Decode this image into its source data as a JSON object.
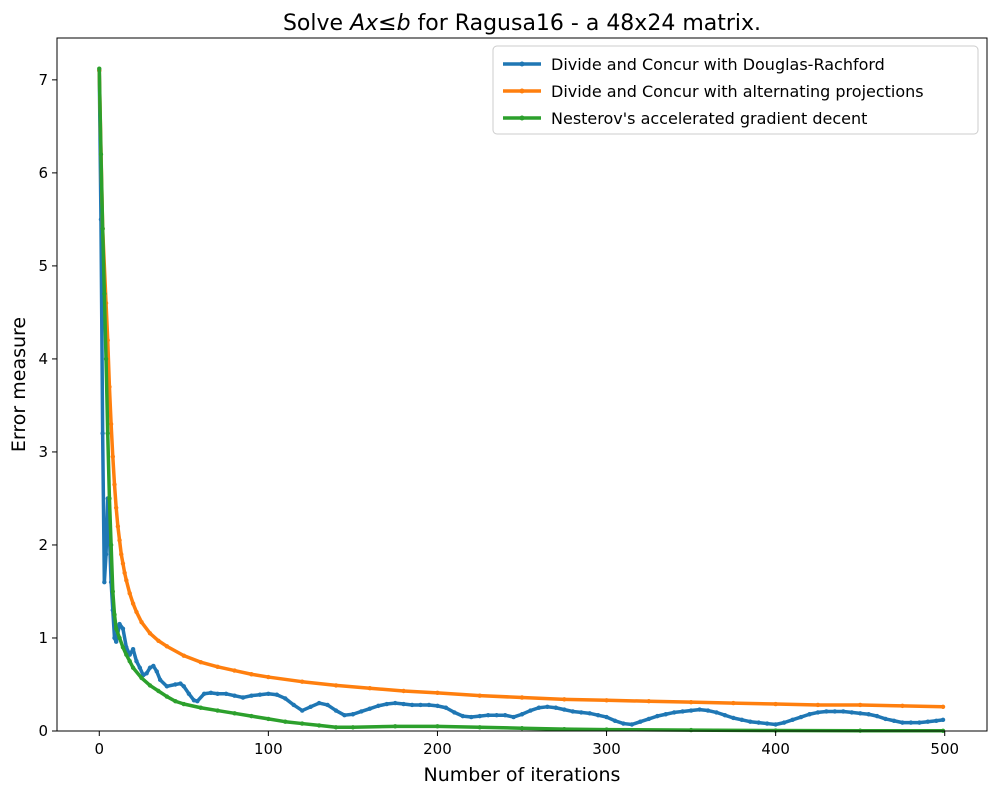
{
  "chart_data": {
    "type": "line",
    "title_parts": {
      "prefix": "Solve ",
      "math_a": "Ax",
      "relation": "≤",
      "math_b": "b",
      "suffix": " for Ragusa16 - a 48x24 matrix."
    },
    "xlabel": "Number of iterations",
    "ylabel": "Error measure",
    "xlim": [
      -25,
      525
    ],
    "ylim": [
      0,
      7.45
    ],
    "xticks": [
      0,
      100,
      200,
      300,
      400,
      500
    ],
    "yticks": [
      0,
      1,
      2,
      3,
      4,
      5,
      6,
      7
    ],
    "grid": false,
    "legend_position": "top-right",
    "series": [
      {
        "name": "Divide and Concur with Douglas-Rachford",
        "color": "#1f77b4",
        "points": [
          [
            0,
            7.1
          ],
          [
            1,
            5.5
          ],
          [
            2,
            3.2
          ],
          [
            3,
            1.6
          ],
          [
            4,
            1.9
          ],
          [
            5,
            2.5
          ],
          [
            6,
            2.1
          ],
          [
            7,
            1.6
          ],
          [
            8,
            1.3
          ],
          [
            9,
            1.0
          ],
          [
            10,
            0.96
          ],
          [
            12,
            1.15
          ],
          [
            14,
            1.1
          ],
          [
            16,
            0.9
          ],
          [
            18,
            0.82
          ],
          [
            20,
            0.88
          ],
          [
            22,
            0.75
          ],
          [
            24,
            0.68
          ],
          [
            26,
            0.6
          ],
          [
            28,
            0.62
          ],
          [
            30,
            0.68
          ],
          [
            32,
            0.7
          ],
          [
            34,
            0.64
          ],
          [
            36,
            0.55
          ],
          [
            40,
            0.48
          ],
          [
            45,
            0.5
          ],
          [
            48,
            0.51
          ],
          [
            50,
            0.48
          ],
          [
            53,
            0.4
          ],
          [
            56,
            0.33
          ],
          [
            58,
            0.32
          ],
          [
            62,
            0.4
          ],
          [
            66,
            0.41
          ],
          [
            70,
            0.4
          ],
          [
            75,
            0.4
          ],
          [
            80,
            0.38
          ],
          [
            85,
            0.36
          ],
          [
            90,
            0.38
          ],
          [
            95,
            0.39
          ],
          [
            100,
            0.4
          ],
          [
            105,
            0.39
          ],
          [
            110,
            0.35
          ],
          [
            115,
            0.28
          ],
          [
            120,
            0.22
          ],
          [
            125,
            0.26
          ],
          [
            130,
            0.3
          ],
          [
            135,
            0.28
          ],
          [
            140,
            0.22
          ],
          [
            145,
            0.17
          ],
          [
            150,
            0.18
          ],
          [
            155,
            0.21
          ],
          [
            160,
            0.24
          ],
          [
            165,
            0.27
          ],
          [
            170,
            0.29
          ],
          [
            175,
            0.3
          ],
          [
            180,
            0.29
          ],
          [
            185,
            0.28
          ],
          [
            190,
            0.28
          ],
          [
            195,
            0.28
          ],
          [
            200,
            0.27
          ],
          [
            205,
            0.25
          ],
          [
            210,
            0.2
          ],
          [
            215,
            0.16
          ],
          [
            220,
            0.15
          ],
          [
            225,
            0.16
          ],
          [
            230,
            0.17
          ],
          [
            235,
            0.17
          ],
          [
            240,
            0.17
          ],
          [
            245,
            0.15
          ],
          [
            250,
            0.18
          ],
          [
            255,
            0.22
          ],
          [
            260,
            0.25
          ],
          [
            265,
            0.26
          ],
          [
            270,
            0.25
          ],
          [
            275,
            0.23
          ],
          [
            280,
            0.21
          ],
          [
            285,
            0.2
          ],
          [
            290,
            0.19
          ],
          [
            295,
            0.17
          ],
          [
            300,
            0.15
          ],
          [
            305,
            0.11
          ],
          [
            310,
            0.08
          ],
          [
            315,
            0.07
          ],
          [
            320,
            0.1
          ],
          [
            325,
            0.13
          ],
          [
            330,
            0.16
          ],
          [
            335,
            0.18
          ],
          [
            340,
            0.2
          ],
          [
            345,
            0.21
          ],
          [
            350,
            0.22
          ],
          [
            355,
            0.23
          ],
          [
            360,
            0.22
          ],
          [
            365,
            0.2
          ],
          [
            370,
            0.17
          ],
          [
            375,
            0.14
          ],
          [
            380,
            0.12
          ],
          [
            385,
            0.1
          ],
          [
            390,
            0.09
          ],
          [
            395,
            0.08
          ],
          [
            400,
            0.07
          ],
          [
            405,
            0.09
          ],
          [
            410,
            0.12
          ],
          [
            415,
            0.15
          ],
          [
            420,
            0.18
          ],
          [
            425,
            0.2
          ],
          [
            430,
            0.21
          ],
          [
            435,
            0.21
          ],
          [
            440,
            0.21
          ],
          [
            445,
            0.2
          ],
          [
            450,
            0.19
          ],
          [
            455,
            0.18
          ],
          [
            460,
            0.16
          ],
          [
            465,
            0.13
          ],
          [
            470,
            0.11
          ],
          [
            475,
            0.09
          ],
          [
            480,
            0.09
          ],
          [
            485,
            0.09
          ],
          [
            490,
            0.1
          ],
          [
            495,
            0.11
          ],
          [
            499,
            0.12
          ]
        ]
      },
      {
        "name": "Divide and Concur with alternating projections",
        "color": "#ff7f0e",
        "points": [
          [
            0,
            7.1
          ],
          [
            2,
            5.4
          ],
          [
            4,
            4.6
          ],
          [
            5,
            4.2
          ],
          [
            6,
            3.7
          ],
          [
            7,
            3.3
          ],
          [
            8,
            2.95
          ],
          [
            9,
            2.65
          ],
          [
            10,
            2.4
          ],
          [
            11,
            2.2
          ],
          [
            12,
            2.05
          ],
          [
            13,
            1.9
          ],
          [
            14,
            1.8
          ],
          [
            15,
            1.7
          ],
          [
            16,
            1.62
          ],
          [
            18,
            1.48
          ],
          [
            20,
            1.37
          ],
          [
            22,
            1.28
          ],
          [
            25,
            1.17
          ],
          [
            30,
            1.05
          ],
          [
            35,
            0.97
          ],
          [
            40,
            0.91
          ],
          [
            50,
            0.81
          ],
          [
            60,
            0.74
          ],
          [
            70,
            0.69
          ],
          [
            80,
            0.65
          ],
          [
            90,
            0.61
          ],
          [
            100,
            0.58
          ],
          [
            120,
            0.53
          ],
          [
            140,
            0.49
          ],
          [
            160,
            0.46
          ],
          [
            180,
            0.43
          ],
          [
            200,
            0.41
          ],
          [
            225,
            0.38
          ],
          [
            250,
            0.36
          ],
          [
            275,
            0.34
          ],
          [
            300,
            0.33
          ],
          [
            325,
            0.32
          ],
          [
            350,
            0.31
          ],
          [
            375,
            0.3
          ],
          [
            400,
            0.29
          ],
          [
            425,
            0.28
          ],
          [
            450,
            0.28
          ],
          [
            475,
            0.27
          ],
          [
            499,
            0.26
          ]
        ]
      },
      {
        "name": "Nesterov's accelerated gradient decent",
        "color": "#2ca02c",
        "points": [
          [
            0,
            7.12
          ],
          [
            1,
            6.2
          ],
          [
            2,
            5.4
          ],
          [
            3,
            4.7
          ],
          [
            4,
            4.0
          ],
          [
            5,
            3.2
          ],
          [
            6,
            2.5
          ],
          [
            7,
            2.0
          ],
          [
            8,
            1.5
          ],
          [
            9,
            1.25
          ],
          [
            10,
            1.1
          ],
          [
            12,
            1.0
          ],
          [
            14,
            0.9
          ],
          [
            16,
            0.82
          ],
          [
            18,
            0.75
          ],
          [
            20,
            0.68
          ],
          [
            25,
            0.57
          ],
          [
            30,
            0.49
          ],
          [
            35,
            0.43
          ],
          [
            40,
            0.37
          ],
          [
            45,
            0.32
          ],
          [
            50,
            0.29
          ],
          [
            60,
            0.25
          ],
          [
            70,
            0.22
          ],
          [
            80,
            0.19
          ],
          [
            90,
            0.16
          ],
          [
            100,
            0.13
          ],
          [
            110,
            0.1
          ],
          [
            120,
            0.08
          ],
          [
            130,
            0.06
          ],
          [
            140,
            0.04
          ],
          [
            150,
            0.04
          ],
          [
            175,
            0.05
          ],
          [
            200,
            0.05
          ],
          [
            225,
            0.04
          ],
          [
            250,
            0.03
          ],
          [
            275,
            0.02
          ],
          [
            300,
            0.015
          ],
          [
            350,
            0.01
          ],
          [
            400,
            0.005
          ],
          [
            450,
            0.003
          ],
          [
            499,
            0.002
          ]
        ]
      }
    ]
  }
}
